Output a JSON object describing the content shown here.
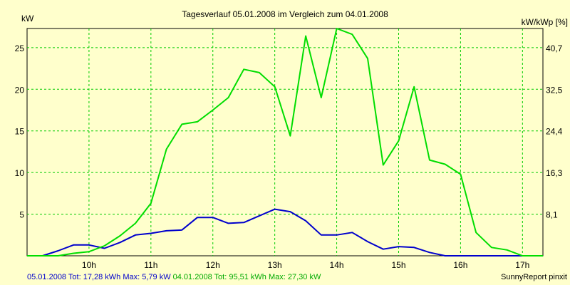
{
  "chart_data": {
    "type": "line",
    "title": "Tagesverlauf 05.01.2008 im Vergleich zum 04.01.2008",
    "ylabel_left": "kW",
    "ylabel_right": "kW/kWp [%]",
    "y_left": {
      "min": 0,
      "max": 27.3,
      "ticks": [
        "5",
        "10",
        "15",
        "20",
        "25"
      ]
    },
    "y_right": {
      "ticks": [
        "8,1",
        "16,3",
        "24,4",
        "32,5",
        "40,7"
      ]
    },
    "x_ticks": [
      "10h",
      "11h",
      "12h",
      "13h",
      "14h",
      "15h",
      "16h",
      "17h"
    ],
    "x_range_hours": [
      9.0,
      17.33
    ],
    "grid": true,
    "series": [
      {
        "label": "05.01.2008 Tot: 17,28 kWh Max: 5,79 kW",
        "color": "#0000cc",
        "points": [
          [
            9.0,
            0.0
          ],
          [
            9.25,
            0.0
          ],
          [
            9.5,
            0.6
          ],
          [
            9.75,
            1.3
          ],
          [
            10.0,
            1.3
          ],
          [
            10.25,
            0.9
          ],
          [
            10.5,
            1.6
          ],
          [
            10.75,
            2.5
          ],
          [
            11.0,
            2.7
          ],
          [
            11.25,
            3.0
          ],
          [
            11.5,
            3.1
          ],
          [
            11.75,
            4.6
          ],
          [
            12.0,
            4.6
          ],
          [
            12.25,
            3.9
          ],
          [
            12.5,
            4.0
          ],
          [
            12.75,
            4.8
          ],
          [
            13.0,
            5.6
          ],
          [
            13.25,
            5.3
          ],
          [
            13.5,
            4.2
          ],
          [
            13.75,
            2.5
          ],
          [
            14.0,
            2.5
          ],
          [
            14.25,
            2.8
          ],
          [
            14.5,
            1.7
          ],
          [
            14.75,
            0.8
          ],
          [
            15.0,
            1.1
          ],
          [
            15.25,
            1.0
          ],
          [
            15.5,
            0.4
          ],
          [
            15.75,
            0.0
          ],
          [
            16.0,
            0.0
          ],
          [
            16.25,
            0.0
          ],
          [
            16.5,
            0.0
          ],
          [
            16.75,
            0.0
          ],
          [
            17.0,
            0.0
          ],
          [
            17.33,
            0.0
          ]
        ]
      },
      {
        "label": "04.01.2008 Tot: 95,51 kWh Max: 27,30 kW",
        "color": "#00dd00",
        "points": [
          [
            9.0,
            0.0
          ],
          [
            9.25,
            0.0
          ],
          [
            9.5,
            0.0
          ],
          [
            9.75,
            0.3
          ],
          [
            10.0,
            0.5
          ],
          [
            10.25,
            1.2
          ],
          [
            10.5,
            2.4
          ],
          [
            10.75,
            3.9
          ],
          [
            11.0,
            6.3
          ],
          [
            11.25,
            12.8
          ],
          [
            11.5,
            15.8
          ],
          [
            11.75,
            16.1
          ],
          [
            12.0,
            17.5
          ],
          [
            12.25,
            19.0
          ],
          [
            12.5,
            22.4
          ],
          [
            12.75,
            22.0
          ],
          [
            13.0,
            20.3
          ],
          [
            13.25,
            14.4
          ],
          [
            13.5,
            26.4
          ],
          [
            13.75,
            19.0
          ],
          [
            14.0,
            27.3
          ],
          [
            14.25,
            26.6
          ],
          [
            14.5,
            23.7
          ],
          [
            14.75,
            10.9
          ],
          [
            15.0,
            13.8
          ],
          [
            15.25,
            20.3
          ],
          [
            15.5,
            11.5
          ],
          [
            15.75,
            11.0
          ],
          [
            16.0,
            9.8
          ],
          [
            16.25,
            2.8
          ],
          [
            16.5,
            1.0
          ],
          [
            16.75,
            0.7
          ],
          [
            17.0,
            0.0
          ],
          [
            17.33,
            0.0
          ]
        ]
      }
    ]
  },
  "footer": {
    "series1": "05.01.2008 Tot: 17,28 kWh Max: 5,79 kW",
    "series2": " 04.01.2008 Tot: 95,51 kWh Max: 27,30 kW",
    "credit": "SunnyReport pinxit"
  }
}
